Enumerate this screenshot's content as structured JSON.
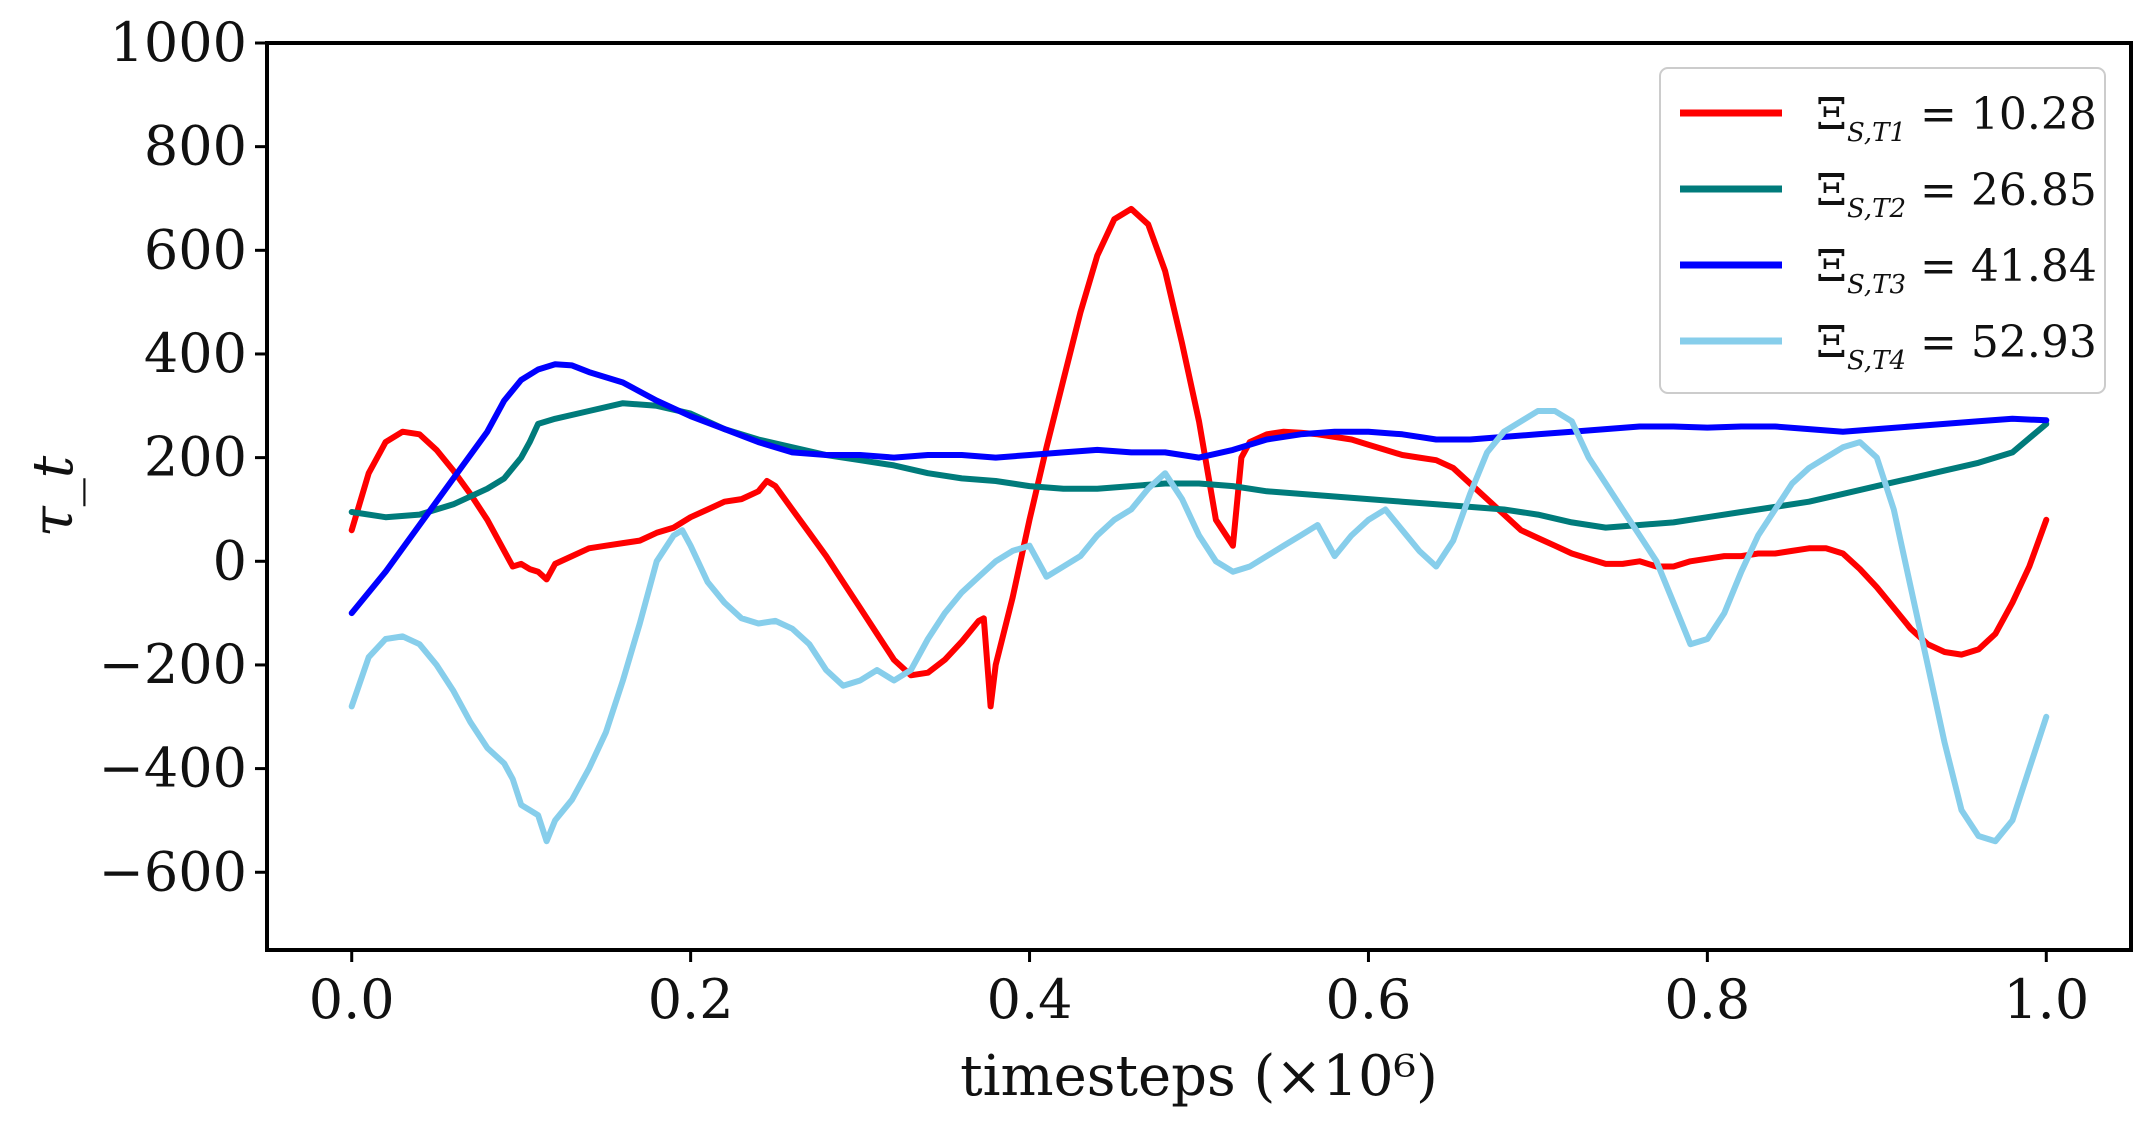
{
  "chart_data": {
    "type": "line",
    "xlabel": "timesteps (×10⁶)",
    "ylabel": "τ_t",
    "xlim": [
      -0.05,
      1.05
    ],
    "ylim": [
      -750,
      1000
    ],
    "x_ticks": [
      0.0,
      0.2,
      0.4,
      0.6,
      0.8,
      1.0
    ],
    "x_tick_labels": [
      "0.0",
      "0.2",
      "0.4",
      "0.6",
      "0.8",
      "1.0"
    ],
    "y_ticks": [
      -600,
      -400,
      -200,
      0,
      200,
      400,
      600,
      800,
      1000
    ],
    "y_tick_labels": [
      "−600",
      "−400",
      "−200",
      "0",
      "200",
      "400",
      "600",
      "800",
      "1000"
    ],
    "grid": false,
    "legend_position": "top-right",
    "series": [
      {
        "name": "Ξ_{S,T1} = 10.28",
        "legend_main": "Ξ",
        "legend_sub": "S,T1",
        "legend_value": " = 10.28",
        "color": "#ff0000",
        "x": [
          0.0,
          0.01,
          0.02,
          0.03,
          0.04,
          0.05,
          0.06,
          0.07,
          0.08,
          0.09,
          0.095,
          0.1,
          0.105,
          0.11,
          0.115,
          0.12,
          0.13,
          0.14,
          0.15,
          0.16,
          0.17,
          0.18,
          0.19,
          0.2,
          0.21,
          0.22,
          0.23,
          0.24,
          0.245,
          0.25,
          0.26,
          0.27,
          0.28,
          0.29,
          0.3,
          0.31,
          0.32,
          0.33,
          0.34,
          0.35,
          0.36,
          0.37,
          0.373,
          0.377,
          0.38,
          0.39,
          0.4,
          0.41,
          0.42,
          0.43,
          0.44,
          0.45,
          0.46,
          0.47,
          0.48,
          0.49,
          0.5,
          0.51,
          0.52,
          0.525,
          0.53,
          0.54,
          0.55,
          0.56,
          0.57,
          0.58,
          0.59,
          0.6,
          0.61,
          0.62,
          0.63,
          0.64,
          0.65,
          0.66,
          0.67,
          0.68,
          0.69,
          0.7,
          0.71,
          0.72,
          0.73,
          0.74,
          0.75,
          0.76,
          0.77,
          0.78,
          0.79,
          0.8,
          0.81,
          0.82,
          0.83,
          0.84,
          0.85,
          0.86,
          0.87,
          0.88,
          0.89,
          0.9,
          0.91,
          0.92,
          0.93,
          0.94,
          0.95,
          0.96,
          0.97,
          0.98,
          0.99,
          1.0
        ],
        "y": [
          60,
          170,
          230,
          250,
          245,
          215,
          175,
          130,
          80,
          20,
          -10,
          -5,
          -15,
          -20,
          -35,
          -5,
          10,
          25,
          30,
          35,
          40,
          55,
          65,
          85,
          100,
          115,
          120,
          135,
          155,
          145,
          100,
          55,
          10,
          -40,
          -90,
          -140,
          -190,
          -220,
          -215,
          -190,
          -155,
          -115,
          -110,
          -280,
          -200,
          -70,
          80,
          220,
          350,
          480,
          590,
          660,
          680,
          650,
          560,
          420,
          270,
          80,
          30,
          200,
          230,
          245,
          250,
          248,
          245,
          240,
          235,
          225,
          215,
          205,
          200,
          195,
          180,
          150,
          120,
          90,
          60,
          45,
          30,
          15,
          5,
          -5,
          -5,
          0,
          -10,
          -10,
          0,
          5,
          10,
          10,
          15,
          15,
          20,
          25,
          25,
          15,
          -15,
          -50,
          -90,
          -130,
          -160,
          -175,
          -180,
          -170,
          -140,
          -80,
          -10,
          80
        ]
      },
      {
        "name": "Ξ_{S,T2} = 26.85",
        "legend_main": "Ξ",
        "legend_sub": "S,T2",
        "legend_value": " = 26.85",
        "color": "#007b7b",
        "x": [
          0.0,
          0.02,
          0.04,
          0.06,
          0.08,
          0.09,
          0.1,
          0.105,
          0.11,
          0.12,
          0.14,
          0.16,
          0.18,
          0.2,
          0.22,
          0.24,
          0.26,
          0.28,
          0.3,
          0.32,
          0.34,
          0.36,
          0.38,
          0.4,
          0.42,
          0.44,
          0.46,
          0.48,
          0.5,
          0.52,
          0.54,
          0.56,
          0.58,
          0.6,
          0.62,
          0.64,
          0.66,
          0.68,
          0.7,
          0.72,
          0.74,
          0.76,
          0.78,
          0.8,
          0.82,
          0.84,
          0.86,
          0.88,
          0.9,
          0.92,
          0.94,
          0.96,
          0.98,
          1.0
        ],
        "y": [
          95,
          85,
          90,
          110,
          140,
          160,
          200,
          230,
          265,
          275,
          290,
          305,
          300,
          285,
          255,
          235,
          220,
          205,
          195,
          185,
          170,
          160,
          155,
          145,
          140,
          140,
          145,
          150,
          150,
          145,
          135,
          130,
          125,
          120,
          115,
          110,
          105,
          100,
          90,
          75,
          65,
          70,
          75,
          85,
          95,
          105,
          115,
          130,
          145,
          160,
          175,
          190,
          210,
          265
        ]
      },
      {
        "name": "Ξ_{S,T3} = 41.84",
        "legend_main": "Ξ",
        "legend_sub": "S,T3",
        "legend_value": " = 41.84",
        "color": "#0000ff",
        "x": [
          0.0,
          0.02,
          0.04,
          0.06,
          0.08,
          0.09,
          0.1,
          0.11,
          0.12,
          0.13,
          0.14,
          0.16,
          0.18,
          0.2,
          0.22,
          0.24,
          0.26,
          0.28,
          0.3,
          0.32,
          0.34,
          0.36,
          0.38,
          0.4,
          0.42,
          0.44,
          0.46,
          0.48,
          0.5,
          0.52,
          0.54,
          0.56,
          0.58,
          0.6,
          0.62,
          0.64,
          0.66,
          0.68,
          0.7,
          0.72,
          0.74,
          0.76,
          0.78,
          0.8,
          0.82,
          0.84,
          0.86,
          0.88,
          0.9,
          0.92,
          0.94,
          0.96,
          0.98,
          1.0
        ],
        "y": [
          -100,
          -20,
          70,
          160,
          250,
          310,
          350,
          370,
          380,
          378,
          365,
          345,
          310,
          280,
          255,
          230,
          210,
          205,
          205,
          200,
          205,
          205,
          200,
          205,
          210,
          215,
          210,
          210,
          200,
          215,
          235,
          245,
          250,
          250,
          245,
          235,
          235,
          240,
          245,
          250,
          255,
          260,
          260,
          258,
          260,
          260,
          255,
          250,
          255,
          260,
          265,
          270,
          275,
          272
        ]
      },
      {
        "name": "Ξ_{S,T4} = 52.93",
        "legend_main": "Ξ",
        "legend_sub": "S,T4",
        "legend_value": " = 52.93",
        "color": "#87ceeb",
        "x": [
          0.0,
          0.01,
          0.02,
          0.03,
          0.04,
          0.05,
          0.06,
          0.07,
          0.08,
          0.09,
          0.095,
          0.1,
          0.105,
          0.11,
          0.115,
          0.12,
          0.13,
          0.14,
          0.15,
          0.16,
          0.17,
          0.18,
          0.19,
          0.195,
          0.2,
          0.21,
          0.22,
          0.23,
          0.24,
          0.25,
          0.26,
          0.27,
          0.28,
          0.29,
          0.3,
          0.31,
          0.32,
          0.33,
          0.34,
          0.35,
          0.36,
          0.37,
          0.38,
          0.39,
          0.4,
          0.41,
          0.42,
          0.43,
          0.44,
          0.45,
          0.46,
          0.47,
          0.48,
          0.49,
          0.5,
          0.51,
          0.52,
          0.53,
          0.54,
          0.55,
          0.56,
          0.57,
          0.58,
          0.59,
          0.6,
          0.61,
          0.62,
          0.63,
          0.64,
          0.65,
          0.66,
          0.67,
          0.68,
          0.69,
          0.7,
          0.71,
          0.72,
          0.73,
          0.74,
          0.75,
          0.76,
          0.77,
          0.78,
          0.79,
          0.8,
          0.81,
          0.82,
          0.83,
          0.84,
          0.85,
          0.86,
          0.87,
          0.88,
          0.89,
          0.9,
          0.91,
          0.92,
          0.93,
          0.94,
          0.95,
          0.96,
          0.97,
          0.98,
          0.99,
          1.0
        ],
        "y": [
          -280,
          -185,
          -150,
          -145,
          -160,
          -200,
          -250,
          -310,
          -360,
          -390,
          -420,
          -470,
          -480,
          -490,
          -540,
          -500,
          -460,
          -400,
          -330,
          -230,
          -120,
          0,
          50,
          60,
          30,
          -40,
          -80,
          -110,
          -120,
          -115,
          -130,
          -160,
          -210,
          -240,
          -230,
          -210,
          -230,
          -210,
          -150,
          -100,
          -60,
          -30,
          0,
          20,
          30,
          -30,
          -10,
          10,
          50,
          80,
          100,
          140,
          170,
          120,
          50,
          0,
          -20,
          -10,
          10,
          30,
          50,
          70,
          10,
          50,
          80,
          100,
          60,
          20,
          -10,
          40,
          130,
          210,
          250,
          270,
          290,
          290,
          270,
          200,
          150,
          100,
          50,
          0,
          -80,
          -160,
          -150,
          -100,
          -20,
          50,
          100,
          150,
          180,
          200,
          220,
          230,
          200,
          100,
          -50,
          -200,
          -350,
          -480,
          -530,
          -540,
          -500,
          -400,
          -300
        ]
      }
    ]
  }
}
